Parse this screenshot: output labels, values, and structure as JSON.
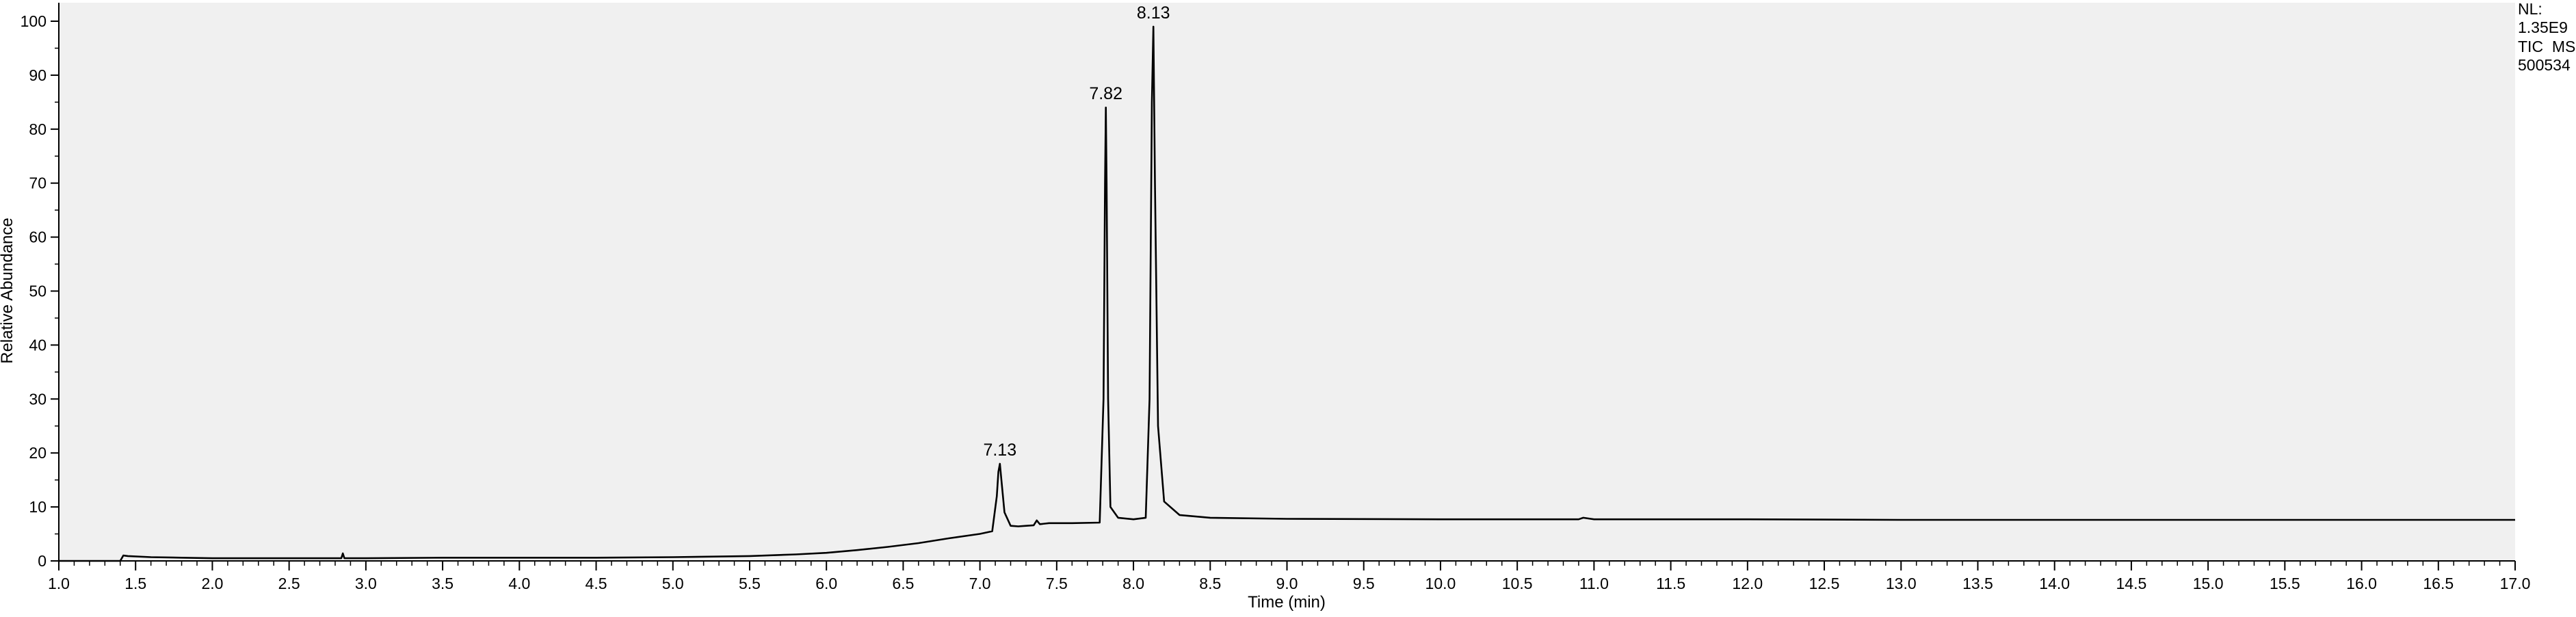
{
  "chart_data": {
    "type": "line",
    "title": "",
    "xlabel": "Time (min)",
    "ylabel": "Relative Abundance",
    "xlim": [
      1.0,
      17.0
    ],
    "ylim": [
      0,
      100
    ],
    "x_ticks": [
      "1.0",
      "1.5",
      "2.0",
      "2.5",
      "3.0",
      "3.5",
      "4.0",
      "4.5",
      "5.0",
      "5.5",
      "6.0",
      "6.5",
      "7.0",
      "7.5",
      "8.0",
      "8.5",
      "9.0",
      "9.5",
      "10.0",
      "10.5",
      "11.0",
      "11.5",
      "12.0",
      "12.5",
      "13.0",
      "13.5",
      "14.0",
      "14.5",
      "15.0",
      "15.5",
      "16.0",
      "16.5",
      "17.0"
    ],
    "y_ticks": [
      "0",
      "10",
      "20",
      "30",
      "40",
      "50",
      "60",
      "70",
      "80",
      "90",
      "100"
    ],
    "grid": false,
    "background": "#f0f0f0",
    "line_color": "#000000",
    "series": [
      {
        "x": [
          1.0,
          1.4,
          1.42,
          1.45,
          1.6,
          1.8,
          2.0,
          2.5,
          2.84,
          2.85,
          2.86,
          3.0,
          3.5,
          4.0,
          4.5,
          5.0,
          5.5,
          5.8,
          6.0,
          6.2,
          6.4,
          6.6,
          6.8,
          7.0,
          7.08,
          7.11,
          7.12,
          7.13,
          7.14,
          7.16,
          7.2,
          7.25,
          7.3,
          7.35,
          7.37,
          7.39,
          7.45,
          7.6,
          7.78,
          7.805,
          7.815,
          7.82,
          7.825,
          7.835,
          7.85,
          7.9,
          8.0,
          8.08,
          8.105,
          8.12,
          8.13,
          8.14,
          8.16,
          8.2,
          8.3,
          8.5,
          9.0,
          10.0,
          10.9,
          10.93,
          11.0,
          12.0,
          13.0,
          14.0,
          15.0,
          16.0,
          17.0
        ],
        "y": [
          0,
          0,
          1.0,
          0.9,
          0.7,
          0.6,
          0.5,
          0.5,
          0.5,
          1.4,
          0.5,
          0.5,
          0.6,
          0.6,
          0.6,
          0.7,
          0.9,
          1.2,
          1.5,
          2.0,
          2.6,
          3.3,
          4.2,
          5.0,
          5.5,
          12.0,
          16.5,
          18.0,
          15.0,
          9.0,
          6.5,
          6.4,
          6.5,
          6.6,
          7.5,
          6.8,
          7.0,
          7.0,
          7.1,
          30.0,
          70.0,
          84.0,
          70.0,
          30.0,
          10.0,
          8.0,
          7.7,
          8.0,
          30.0,
          85.0,
          99.0,
          70.0,
          25.0,
          11.0,
          8.5,
          8.0,
          7.8,
          7.7,
          7.7,
          8.0,
          7.7,
          7.7,
          7.6,
          7.6,
          7.6,
          7.6,
          7.6
        ]
      }
    ],
    "peaks": [
      {
        "label": "7.13",
        "x": 7.13,
        "y": 18.0
      },
      {
        "label": "7.82",
        "x": 7.82,
        "y": 84.0
      },
      {
        "label": "8.13",
        "x": 8.13,
        "y": 99.0
      }
    ]
  },
  "info": {
    "line1": "NL:",
    "line2": "1.35E9",
    "line3": "TIC  MS",
    "line4": "500534"
  }
}
